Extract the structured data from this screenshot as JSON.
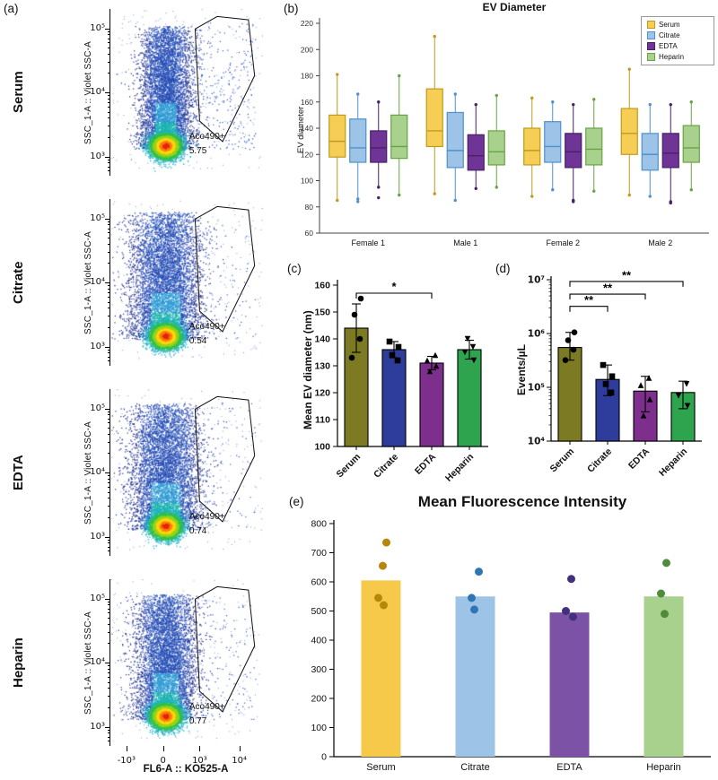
{
  "panels": {
    "a": {
      "label": "(a)",
      "y_axis_label": "SSC_1-A :: Violet SSC-A",
      "x_axis_label": "FL6-A :: KO525-A",
      "y_ticks": [
        "10⁵",
        "10⁴",
        "10³"
      ],
      "x_ticks": [
        "-10³",
        "0",
        "10³",
        "10⁴"
      ],
      "plots": [
        {
          "name": "Serum",
          "gate_label": "Aco490+",
          "gate_value": "5.75"
        },
        {
          "name": "Citrate",
          "gate_label": "Aco490+",
          "gate_value": "0.54"
        },
        {
          "name": "EDTA",
          "gate_label": "Aco490+",
          "gate_value": "0.74"
        },
        {
          "name": "Heparin",
          "gate_label": "Aco490+",
          "gate_value": "0.77"
        }
      ]
    },
    "b": {
      "label": "(b)"
    },
    "c": {
      "label": "(c)"
    },
    "d": {
      "label": "(d)"
    },
    "e": {
      "label": "(e)"
    }
  },
  "chart_data": [
    {
      "type": "scatter",
      "x_axis_label": "FL6-A :: KO525-A",
      "y_axis_label": "SSC_1-A :: Violet SSC-A",
      "samples": [
        {
          "name": "Serum",
          "gate": "Aco490+",
          "percent": 5.75
        },
        {
          "name": "Citrate",
          "gate": "Aco490+",
          "percent": 0.54
        },
        {
          "name": "EDTA",
          "gate": "Aco490+",
          "percent": 0.74
        },
        {
          "name": "Heparin",
          "gate": "Aco490+",
          "percent": 0.77
        }
      ]
    },
    {
      "type": "box",
      "title": "EV Diameter",
      "ylabel": "EV diameter",
      "ylim": [
        60,
        220
      ],
      "yticks": [
        60,
        80,
        100,
        120,
        140,
        160,
        180,
        200,
        220
      ],
      "categories": [
        "Female 1",
        "Male 1",
        "Female 2",
        "Male 2"
      ],
      "legend_position": "top-right",
      "series": [
        {
          "name": "Serum",
          "color": "#F7CE55",
          "edge": "#C29A1B",
          "boxes": [
            [
              85,
              118,
              130,
              150,
              181
            ],
            [
              90,
              126,
              138,
              170,
              210
            ],
            [
              88,
              112,
              123,
              140,
              163
            ],
            [
              89,
              120,
              136,
              155,
              185
            ]
          ]
        },
        {
          "name": "Citrate",
          "color": "#9DC3E6",
          "edge": "#4F91CD",
          "boxes": [
            [
              86,
              114,
              125,
              147,
              166
            ],
            [
              85,
              110,
              123,
              152,
              166
            ],
            [
              93,
              114,
              126,
              145,
              160
            ],
            [
              88,
              108,
              120,
              136,
              158
            ]
          ]
        },
        {
          "name": "EDTA",
          "color": "#6F3596",
          "edge": "#471F66",
          "boxes": [
            [
              95,
              114,
              125,
              138,
              160
            ],
            [
              94,
              108,
              119,
              135,
              158
            ],
            [
              85,
              110,
              122,
              136,
              158
            ],
            [
              84,
              110,
              121,
              136,
              158
            ]
          ]
        },
        {
          "name": "Heparin",
          "color": "#A9D18E",
          "edge": "#69A244",
          "boxes": [
            [
              89,
              117,
              126,
              150,
              180
            ],
            [
              95,
              112,
              122,
              138,
              165
            ],
            [
              92,
              112,
              124,
              140,
              162
            ],
            [
              93,
              114,
              125,
              142,
              160
            ]
          ]
        }
      ],
      "outliers": [
        {
          "g": 0,
          "s": 1,
          "v": 84
        },
        {
          "g": 0,
          "s": 2,
          "v": 87
        },
        {
          "g": 2,
          "s": 2,
          "v": 84
        },
        {
          "g": 3,
          "s": 2,
          "v": 83
        }
      ]
    },
    {
      "type": "bar",
      "ylabel": "Mean EV diameter (nm)",
      "ylim": [
        100,
        160
      ],
      "yticks": [
        100,
        110,
        120,
        130,
        140,
        150,
        160
      ],
      "categories": [
        "Serum",
        "Citrate",
        "EDTA",
        "Heparin"
      ],
      "values": [
        144,
        136,
        131,
        136
      ],
      "errors": [
        9,
        3,
        2.5,
        3.5
      ],
      "colors": [
        "#7C7A22",
        "#2E3D9B",
        "#7E2F8E",
        "#2EA44F"
      ],
      "points": [
        [
          133,
          140,
          149,
          155
        ],
        [
          132,
          134,
          137,
          139
        ],
        [
          128,
          130,
          132,
          134
        ],
        [
          132,
          135,
          137,
          140
        ]
      ],
      "point_markers": [
        "circle",
        "square",
        "triangle-up",
        "triangle-down"
      ],
      "significance": [
        {
          "from": "Serum",
          "to": "EDTA",
          "label": "*",
          "value": 157
        }
      ]
    },
    {
      "type": "bar",
      "scale": "log",
      "ylabel": "Events/µL",
      "ylim": [
        10000,
        10000000
      ],
      "ytick_labels": [
        "10⁷",
        "10⁶",
        "10⁵",
        "10⁴"
      ],
      "ytick_values": [
        10000000,
        1000000,
        100000,
        10000
      ],
      "categories": [
        "Serum",
        "Citrate",
        "EDTA",
        "Heparin"
      ],
      "values": [
        550000,
        140000,
        85000,
        80000
      ],
      "error_high": [
        1050000,
        260000,
        160000,
        130000
      ],
      "error_low": [
        320000,
        70000,
        35000,
        40000
      ],
      "colors": [
        "#7C7A22",
        "#2E3D9B",
        "#7E2F8E",
        "#2EA44F"
      ],
      "points": [
        [
          320000,
          500000,
          750000,
          1050000
        ],
        [
          80000,
          115000,
          160000,
          260000
        ],
        [
          30000,
          60000,
          110000,
          150000
        ],
        [
          45000,
          70000,
          115000
        ]
      ],
      "point_markers": [
        "circle",
        "square",
        "triangle-up",
        "triangle-down"
      ],
      "significance": [
        {
          "from": "Serum",
          "to": "Citrate",
          "label": "**",
          "value": 3200000
        },
        {
          "from": "Serum",
          "to": "EDTA",
          "label": "**",
          "value": 5400000
        },
        {
          "from": "Serum",
          "to": "Heparin",
          "label": "**",
          "value": 9300000
        }
      ]
    },
    {
      "type": "bar",
      "title": "Mean Fluorescence Intensity",
      "ylim": [
        0,
        800
      ],
      "yticks": [
        0,
        100,
        200,
        300,
        400,
        500,
        600,
        700,
        800
      ],
      "categories": [
        "Serum",
        "Citrate",
        "EDTA",
        "Heparin"
      ],
      "values": [
        605,
        550,
        495,
        550
      ],
      "colors": [
        "#F6C94B",
        "#9DC3E6",
        "#7B52A5",
        "#A9D18E"
      ],
      "dot_colors": [
        "#B8860B",
        "#2E75B6",
        "#42307E",
        "#4E8B3B"
      ],
      "dots": [
        [
          [
            735,
            6
          ],
          [
            655,
            2
          ],
          [
            545,
            -3
          ],
          [
            520,
            3
          ]
        ],
        [
          [
            635,
            4
          ],
          [
            545,
            -4
          ],
          [
            505,
            -1
          ]
        ],
        [
          [
            610,
            2
          ],
          [
            500,
            -4
          ],
          [
            480,
            4
          ]
        ],
        [
          [
            665,
            3
          ],
          [
            560,
            -3
          ],
          [
            490,
            1
          ]
        ]
      ]
    }
  ]
}
